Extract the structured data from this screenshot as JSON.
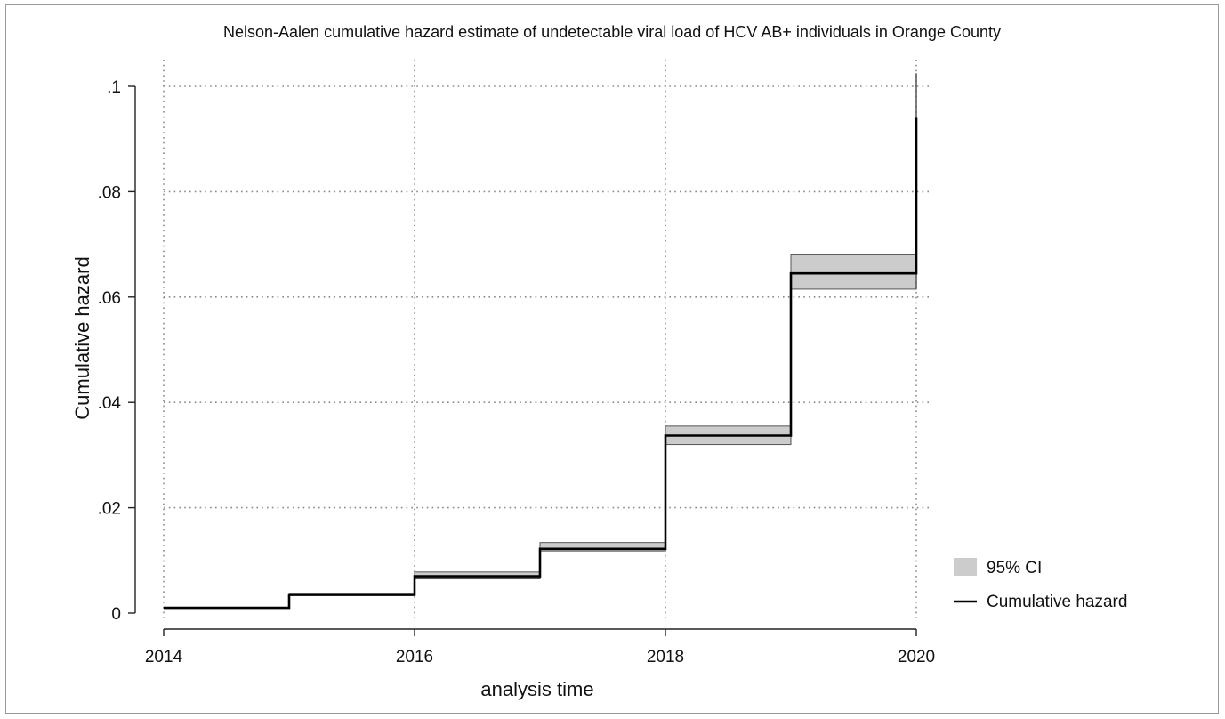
{
  "chart_data": {
    "type": "line",
    "title": "Nelson-Aalen cumulative hazard estimate of undetectable viral load of HCV AB+ individuals in Orange County",
    "xlabel": "analysis time",
    "ylabel": "Cumulative hazard",
    "xlim": [
      2014,
      2020
    ],
    "ylim": [
      0,
      0.1
    ],
    "x_ticks": [
      2014,
      2016,
      2018,
      2020
    ],
    "x_tick_labels": [
      "2014",
      "2016",
      "2018",
      "2020"
    ],
    "y_ticks": [
      0,
      0.02,
      0.04,
      0.06,
      0.08,
      0.1
    ],
    "y_tick_labels": [
      "0",
      ".02",
      ".04",
      ".06",
      ".08",
      ".1"
    ],
    "grid": "dotted",
    "legend_position": "right",
    "series": [
      {
        "name": "Cumulative hazard",
        "style": "step",
        "color": "#000000",
        "x": [
          2014,
          2015,
          2016,
          2017,
          2018,
          2019,
          2020
        ],
        "y": [
          0.001,
          0.0035,
          0.007,
          0.0122,
          0.0337,
          0.0645,
          0.094
        ]
      },
      {
        "name": "95% CI",
        "style": "band",
        "color": "#cccccc",
        "x": [
          2014,
          2015,
          2016,
          2017,
          2018,
          2019,
          2020
        ],
        "lower": [
          0.001,
          0.0033,
          0.0065,
          0.0118,
          0.032,
          0.0615,
          0.0935
        ],
        "upper": [
          0.0011,
          0.0038,
          0.0078,
          0.0134,
          0.0355,
          0.068,
          0.1025
        ]
      }
    ]
  }
}
